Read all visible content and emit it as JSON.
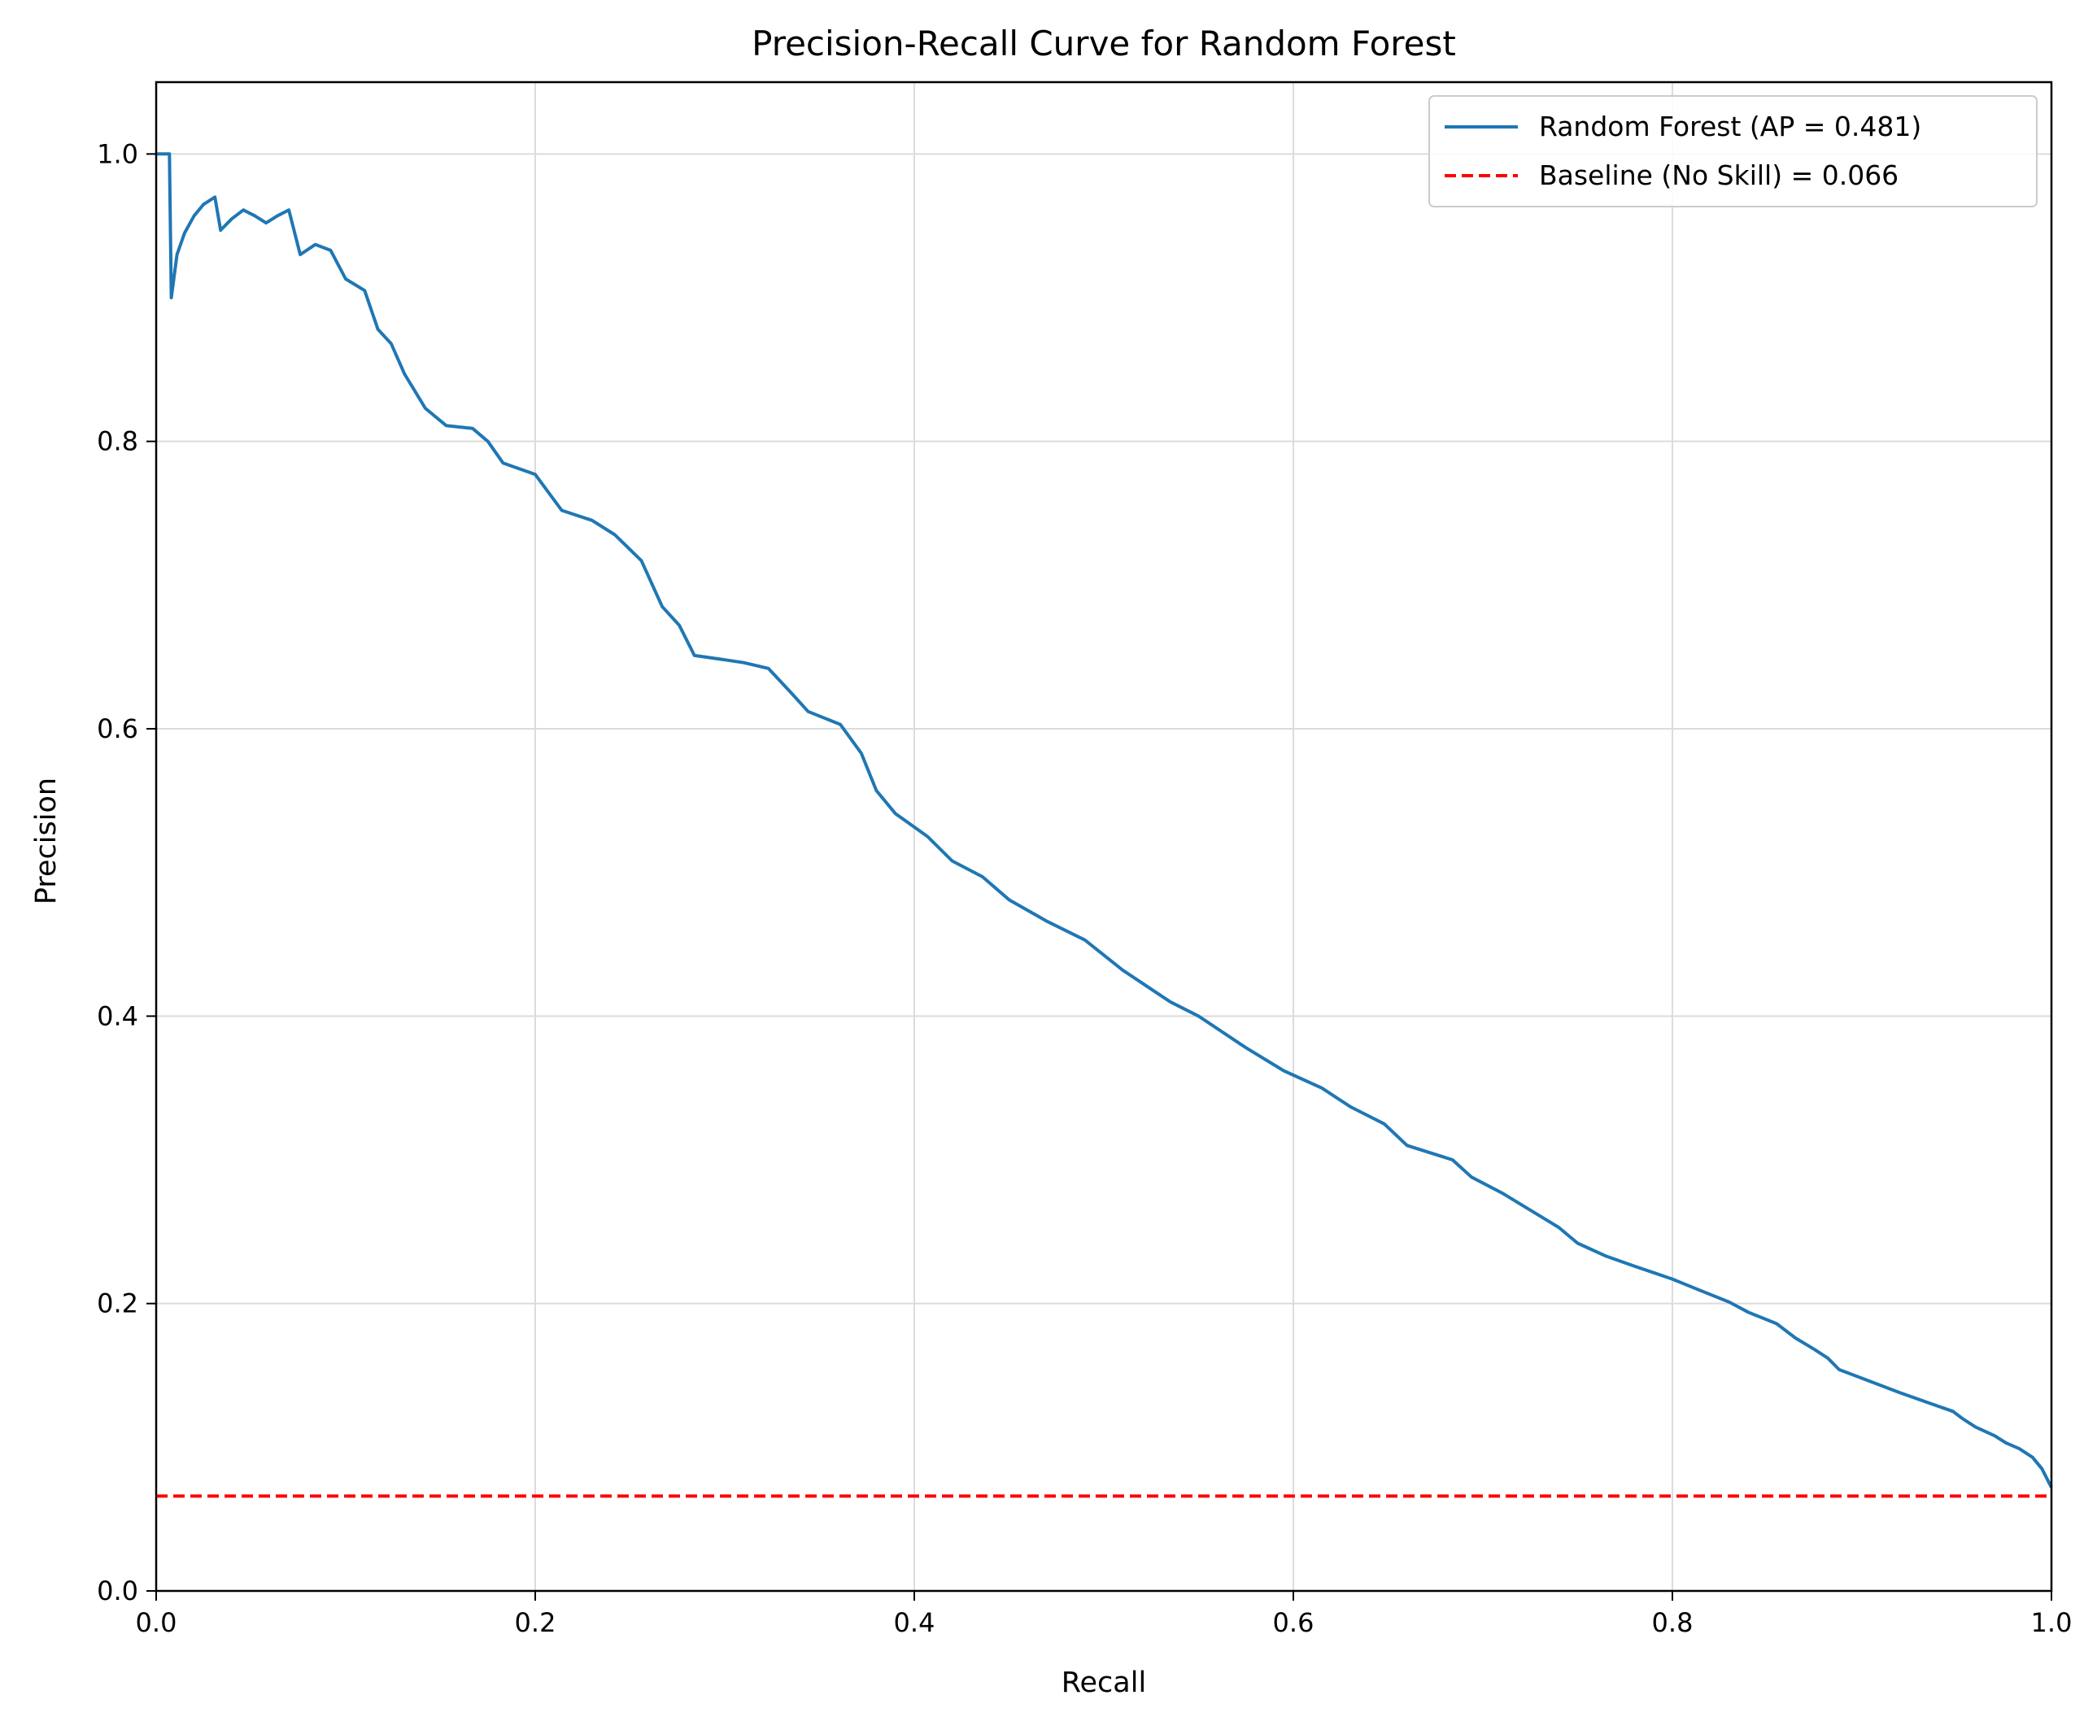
{
  "chart_data": {
    "type": "line",
    "title": "Precision-Recall Curve for Random Forest",
    "xlabel": "Recall",
    "ylabel": "Precision",
    "xlim": [
      0.0,
      1.0
    ],
    "ylim": [
      0.0,
      1.05
    ],
    "xticks": [
      0.0,
      0.2,
      0.4,
      0.6,
      0.8,
      1.0
    ],
    "xtick_labels": [
      "0.0",
      "0.2",
      "0.4",
      "0.6",
      "0.8",
      "1.0"
    ],
    "yticks": [
      0.0,
      0.2,
      0.4,
      0.6,
      0.8,
      1.0
    ],
    "ytick_labels": [
      "0.0",
      "0.2",
      "0.4",
      "0.6",
      "0.8",
      "1.0"
    ],
    "grid": true,
    "legend_position": "top-right",
    "series": [
      {
        "name": "Random Forest (AP = 0.481)",
        "style": "solid",
        "color": "#1f77b4",
        "x": [
          0.0,
          0.007,
          0.008,
          0.011,
          0.015,
          0.02,
          0.025,
          0.031,
          0.034,
          0.04,
          0.046,
          0.052,
          0.058,
          0.064,
          0.07,
          0.076,
          0.084,
          0.092,
          0.1,
          0.11,
          0.117,
          0.124,
          0.131,
          0.142,
          0.153,
          0.167,
          0.175,
          0.183,
          0.2,
          0.214,
          0.23,
          0.242,
          0.256,
          0.267,
          0.276,
          0.284,
          0.3,
          0.31,
          0.323,
          0.335,
          0.344,
          0.361,
          0.372,
          0.38,
          0.39,
          0.407,
          0.42,
          0.436,
          0.45,
          0.47,
          0.49,
          0.51,
          0.535,
          0.55,
          0.575,
          0.595,
          0.615,
          0.63,
          0.648,
          0.66,
          0.684,
          0.694,
          0.71,
          0.725,
          0.74,
          0.75,
          0.765,
          0.78,
          0.8,
          0.815,
          0.83,
          0.84,
          0.855,
          0.865,
          0.875,
          0.882,
          0.888,
          0.9,
          0.92,
          0.937,
          0.948,
          0.953,
          0.96,
          0.97,
          0.976,
          0.983,
          0.99,
          0.995,
          1.0
        ],
        "y": [
          1.0,
          1.0,
          0.9,
          0.93,
          0.945,
          0.957,
          0.965,
          0.97,
          0.947,
          0.955,
          0.961,
          0.957,
          0.952,
          0.957,
          0.961,
          0.93,
          0.937,
          0.933,
          0.913,
          0.905,
          0.878,
          0.868,
          0.847,
          0.823,
          0.811,
          0.809,
          0.8,
          0.785,
          0.777,
          0.752,
          0.745,
          0.735,
          0.717,
          0.685,
          0.672,
          0.651,
          0.648,
          0.646,
          0.642,
          0.625,
          0.612,
          0.603,
          0.583,
          0.557,
          0.541,
          0.525,
          0.508,
          0.497,
          0.481,
          0.466,
          0.453,
          0.432,
          0.41,
          0.4,
          0.378,
          0.362,
          0.35,
          0.337,
          0.325,
          0.31,
          0.3,
          0.288,
          0.277,
          0.265,
          0.253,
          0.242,
          0.233,
          0.226,
          0.217,
          0.209,
          0.201,
          0.194,
          0.186,
          0.176,
          0.168,
          0.162,
          0.154,
          0.148,
          0.138,
          0.13,
          0.125,
          0.12,
          0.114,
          0.108,
          0.103,
          0.099,
          0.093,
          0.085,
          0.072
        ]
      },
      {
        "name": "Baseline (No Skill) = 0.066",
        "style": "dashed",
        "color": "#ff0000",
        "x": [
          0.0,
          1.0
        ],
        "y": [
          0.066,
          0.066
        ]
      }
    ]
  }
}
